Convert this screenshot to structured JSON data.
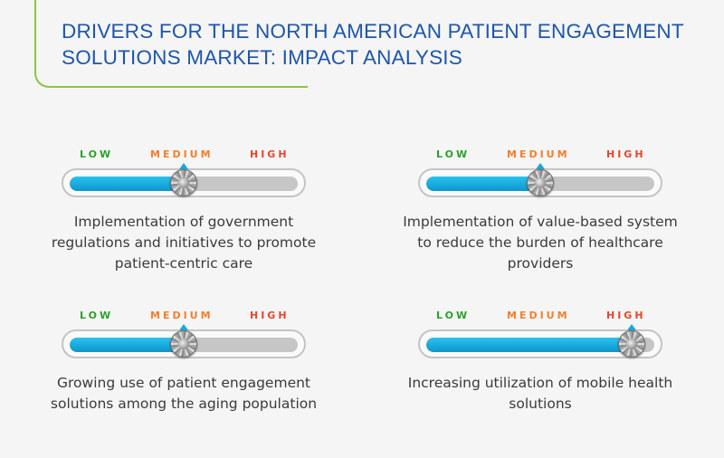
{
  "title": "DRIVERS FOR THE NORTH AMERICAN PATIENT ENGAGEMENT SOLUTIONS MARKET: IMPACT ANALYSIS",
  "scale_labels": {
    "low": "LOW",
    "medium": "MEDIUM",
    "high": "HIGH"
  },
  "colors": {
    "title": "#1e56a8",
    "accent_line": "#8cc63f",
    "low": "#2aa12a",
    "medium": "#f07f2e",
    "high": "#e4472b",
    "gauge_fill": "#1aa7de"
  },
  "drivers": [
    {
      "text": "Implementation of government regulations and initiatives to promote patient-centric care",
      "impact": "MEDIUM",
      "level": 0.5
    },
    {
      "text": "Implementation of value-based system to reduce the burden of healthcare providers",
      "impact": "MEDIUM",
      "level": 0.5
    },
    {
      "text": "Growing use of patient engagement solutions among the aging population",
      "impact": "MEDIUM",
      "level": 0.5
    },
    {
      "text": "Increasing utilization of mobile health solutions",
      "impact": "HIGH",
      "level": 0.9
    }
  ]
}
